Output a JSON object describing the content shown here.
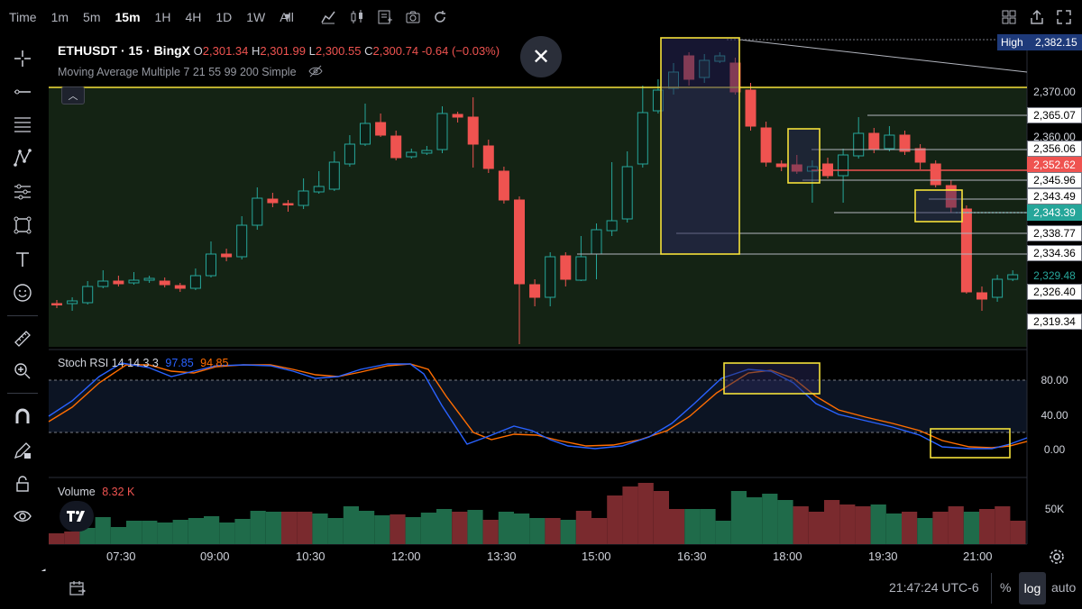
{
  "toolbar": {
    "timeframes": [
      "Time",
      "1m",
      "5m",
      "15m",
      "1H",
      "4H",
      "1D",
      "1W",
      "All"
    ],
    "active_timeframe": "15m",
    "icons": [
      "chevron-down-icon",
      "indicators-icon",
      "candle-type-icon",
      "add-icon",
      "camera-icon",
      "replay-icon",
      "layout-icon",
      "share-icon",
      "fullscreen-icon"
    ]
  },
  "left_tools": [
    "crosshair-icon",
    "trend-line-icon",
    "fib-icon",
    "pattern-icon",
    "measure-tool-icon",
    "shapes-icon",
    "text-icon",
    "emoji-icon",
    "ruler-icon",
    "zoom-icon",
    "magnet-icon",
    "pencil-lock-icon",
    "lock-icon",
    "eye-icon",
    "trash-icon"
  ],
  "legend": {
    "symbol": "ETHUSDT · 15 · BingX",
    "o_label": "O",
    "o": "2,301.34",
    "h_label": "H",
    "h": "2,301.99",
    "l_label": "L",
    "l": "2,300.55",
    "c_label": "C",
    "c": "2,300.74",
    "change": "-0.64 (−0.03%)",
    "ma": "Moving Average Multiple 7 21 55 99 200 Simple"
  },
  "price_axis": {
    "high_label": "High",
    "high_value": "2,382.15",
    "labels": [
      "2,370.00",
      "2,365.07",
      "2,360.00",
      "2,356.06",
      "2,352.62",
      "2,345.96",
      "2,343.49",
      "2,343.39",
      "2,338.77",
      "2,334.36",
      "2,329.48",
      "2,326.40",
      "2,319.34"
    ],
    "current_price": "2,352.62",
    "green_price": "2,343.39"
  },
  "stoch": {
    "title": "Stoch RSI 14 14 3 3",
    "k": "97.85",
    "d": "94.85",
    "levels": [
      "80.00",
      "40.00",
      "0.00"
    ]
  },
  "volume": {
    "title": "Volume",
    "value": "8.32 K",
    "axis": "50K"
  },
  "time_axis": [
    "07:30",
    "09:00",
    "10:30",
    "12:00",
    "13:30",
    "15:00",
    "16:30",
    "18:00",
    "19:30",
    "21:00"
  ],
  "bottom": {
    "clock": "21:47:24 UTC-6",
    "percent": "%",
    "log": "log",
    "auto": "auto"
  },
  "colors": {
    "up": "#26a69a",
    "down": "#ef5350",
    "highlight": "#f5e13a",
    "k_line": "#2962ff",
    "d_line": "#ff6d00"
  }
}
